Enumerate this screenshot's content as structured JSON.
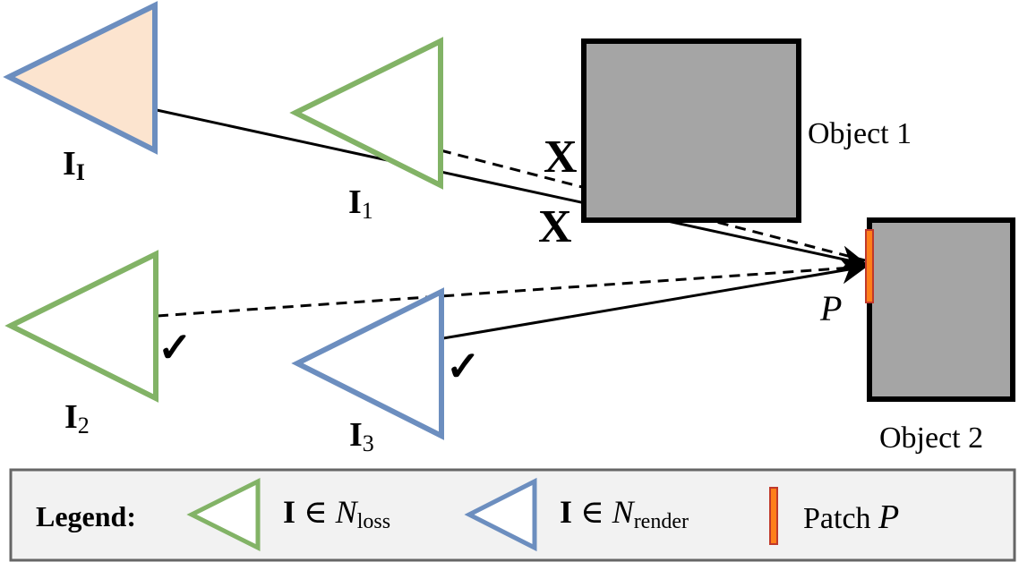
{
  "cameras": {
    "I_I": {
      "base": "I",
      "sub": "I",
      "color": "#6c8ebf",
      "fill": "#fce4cf"
    },
    "I_1": {
      "base": "I",
      "sub": "1",
      "color": "#82b366"
    },
    "I_2": {
      "base": "I",
      "sub": "2",
      "color": "#82b366"
    },
    "I_3": {
      "base": "I",
      "sub": "3",
      "color": "#6c8ebf"
    }
  },
  "objects": {
    "object1": {
      "label": "Object 1",
      "fill": "#a5a5a5",
      "stroke": "#000000"
    },
    "object2": {
      "label": "Object 2",
      "fill": "#a5a5a5",
      "stroke": "#000000"
    }
  },
  "patch": {
    "label": "P",
    "fill": "#ff7f1a",
    "stroke": "#c0392b"
  },
  "marks": {
    "cross": "X",
    "check": "✓",
    "cross_color": "#ff0000",
    "check_color": "#22cc22"
  },
  "legend": {
    "title": "Legend:",
    "loss_set": {
      "bold": "I",
      "op": " ∈ ",
      "italic": "N",
      "sub": "loss"
    },
    "render_set": {
      "bold": "I",
      "op": " ∈ ",
      "italic": "N",
      "sub": "render"
    },
    "patch_text": "Patch ",
    "patch_symbol": "P"
  }
}
